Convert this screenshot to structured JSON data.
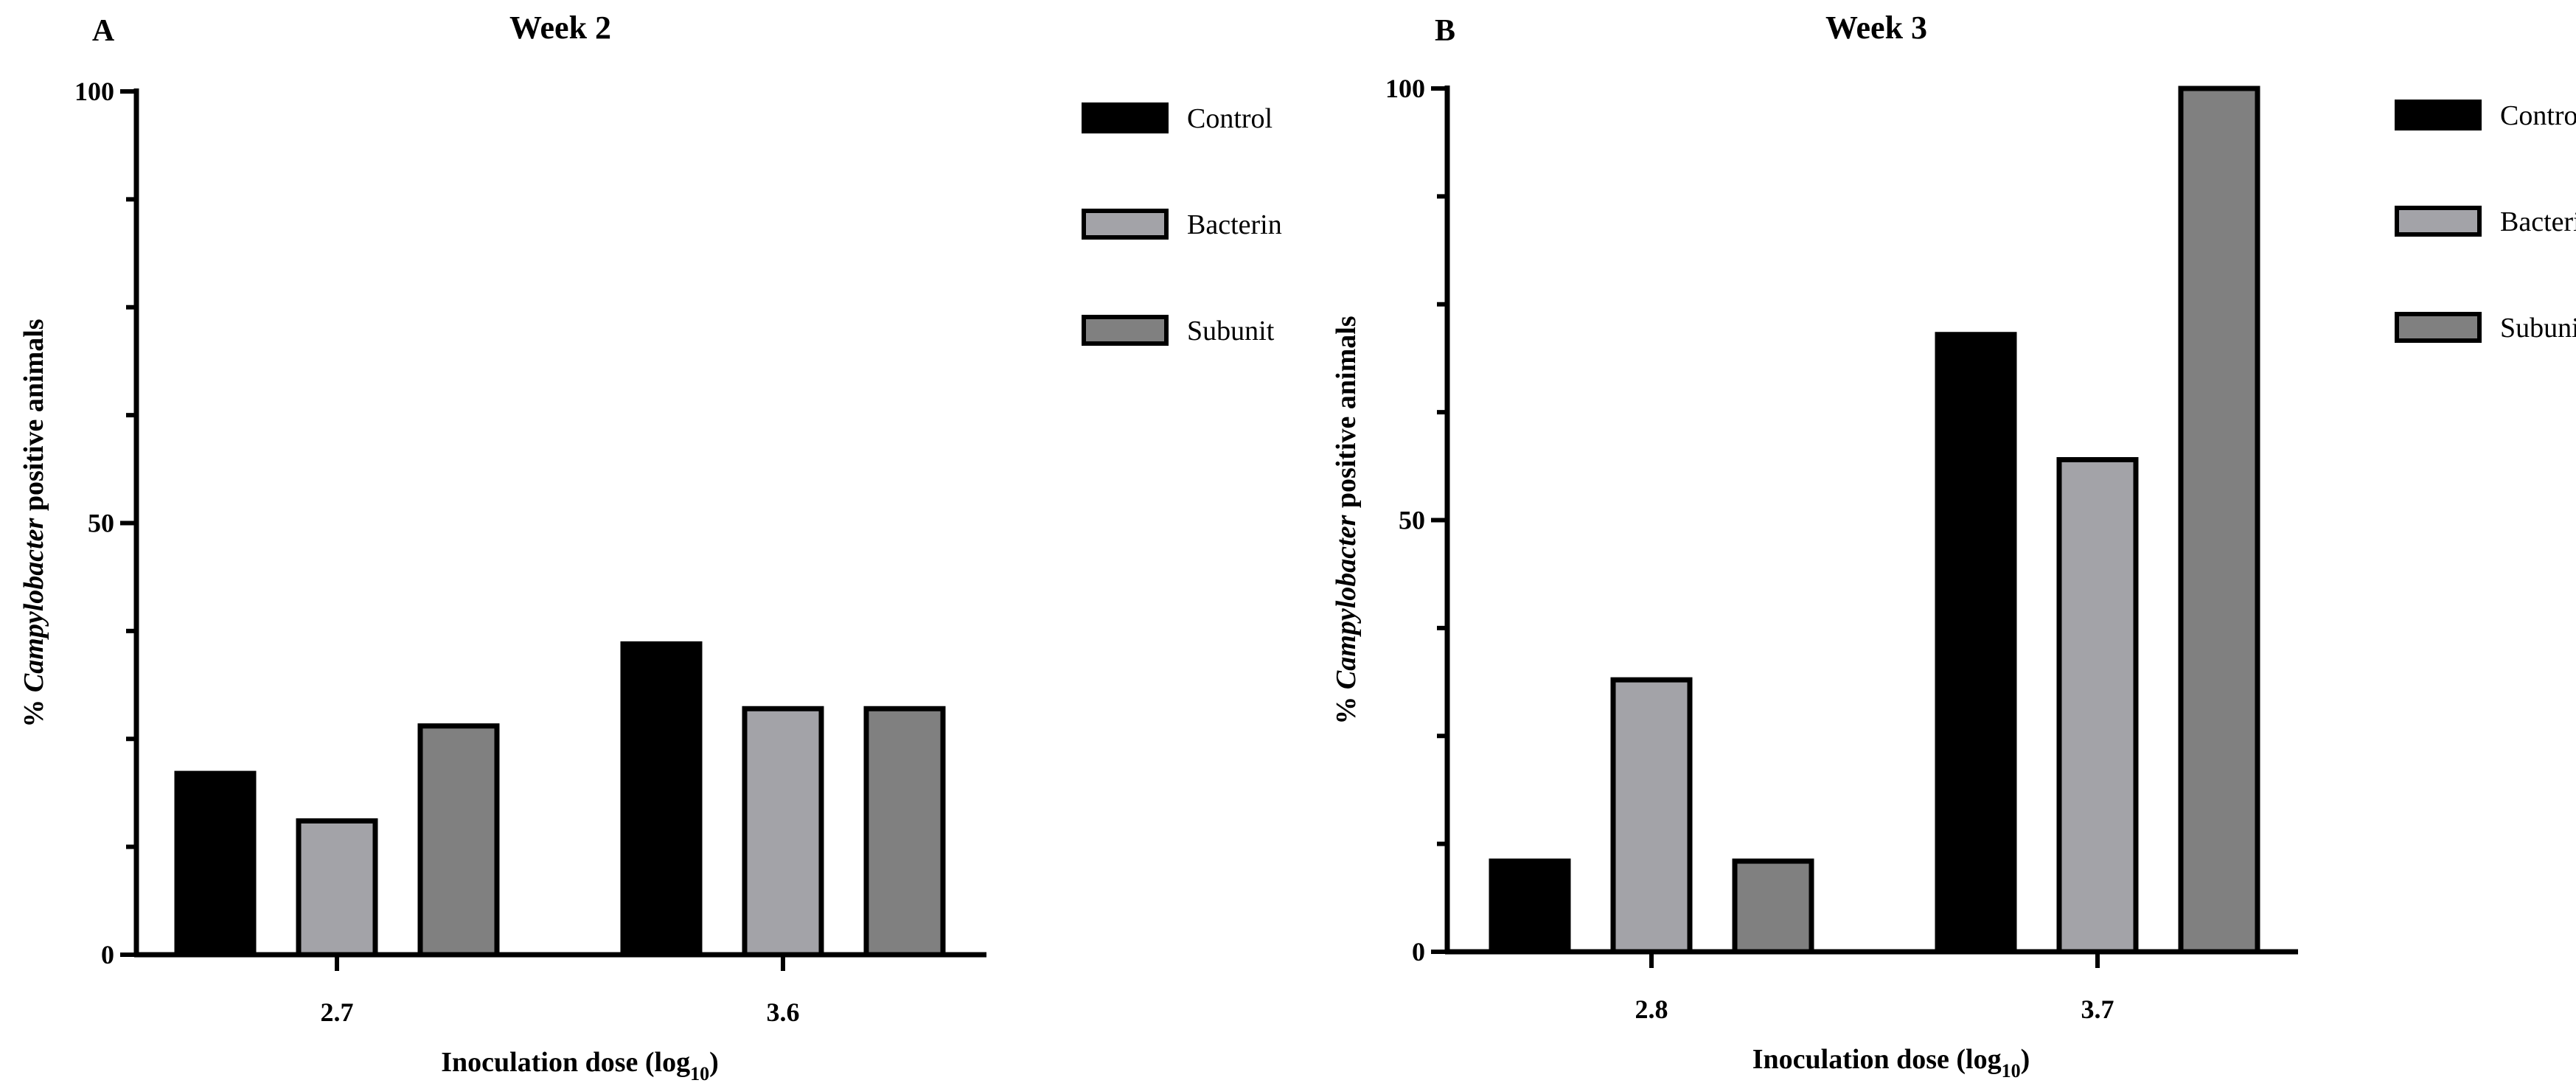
{
  "chart_data": [
    {
      "panel": "A",
      "type": "bar",
      "title": "Week 2",
      "xlabel": "Inoculation dose (log",
      "xlabel_sub": "10",
      "xlabel_end": ")",
      "ylabel_prefix": "% ",
      "ylabel_italic": "Campylobacter",
      "ylabel_suffix": " positive animals",
      "categories": [
        "2.7",
        "3.6"
      ],
      "ylim": [
        0,
        100
      ],
      "yticks": [
        "0",
        "50",
        "100"
      ],
      "series": [
        {
          "name": "Control",
          "color": "#000000",
          "values": [
            21,
            36
          ]
        },
        {
          "name": "Bacterin",
          "color": "#a3a3a8",
          "values": [
            15.5,
            28.5
          ]
        },
        {
          "name": "Subunit",
          "color": "#808080",
          "values": [
            26.5,
            28.5
          ]
        }
      ]
    },
    {
      "panel": "B",
      "type": "bar",
      "title": "Week 3",
      "xlabel": "Inoculation dose (log",
      "xlabel_sub": "10",
      "xlabel_end": ")",
      "ylabel_prefix": "% ",
      "ylabel_italic": "Campylobacter",
      "ylabel_suffix": " positive animals",
      "categories": [
        "2.8",
        "3.7"
      ],
      "ylim": [
        0,
        100
      ],
      "yticks": [
        "0",
        "50",
        "100"
      ],
      "series": [
        {
          "name": "Control",
          "color": "#000000",
          "values": [
            10.5,
            71.5
          ]
        },
        {
          "name": "Bacterin",
          "color": "#a3a3a8",
          "values": [
            31.5,
            57
          ]
        },
        {
          "name": "Subunit",
          "color": "#808080",
          "values": [
            10.5,
            100
          ]
        }
      ]
    }
  ]
}
